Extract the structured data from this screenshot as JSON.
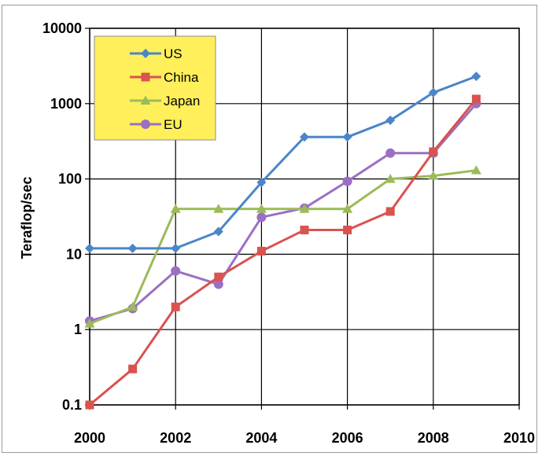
{
  "chart_data": {
    "type": "line",
    "title": "",
    "xlabel": "",
    "ylabel": "Teraflop/sec",
    "y_scale": "log",
    "xlim": [
      2000,
      2010
    ],
    "ylim": [
      0.1,
      10000
    ],
    "grid": true,
    "legend_position": "top-left",
    "legend_background": "#ffef5a",
    "x_ticks": [
      "2000",
      "2002",
      "2004",
      "2006",
      "2008",
      "2010"
    ],
    "y_ticks": [
      "0.1",
      "1",
      "10",
      "100",
      "1000",
      "10000"
    ],
    "x": [
      2000,
      2001,
      2002,
      2003,
      2004,
      2005,
      2006,
      2007,
      2008,
      2009
    ],
    "series": [
      {
        "name": "US",
        "color": "#4a86c8",
        "marker": "diamond",
        "values": [
          12,
          12,
          12,
          20,
          90,
          360,
          360,
          600,
          1400,
          2300
        ]
      },
      {
        "name": "China",
        "color": "#d9534f",
        "marker": "square",
        "values": [
          0.1,
          0.3,
          2,
          5,
          11,
          21,
          21,
          37,
          230,
          1150
        ]
      },
      {
        "name": "Japan",
        "color": "#9bbb59",
        "marker": "triangle",
        "values": [
          1.2,
          2,
          40,
          40,
          40,
          40,
          40,
          100,
          110,
          130
        ]
      },
      {
        "name": "EU",
        "color": "#9b6fc4",
        "marker": "circle",
        "values": [
          1.3,
          1.9,
          6,
          4,
          31,
          41,
          93,
          220,
          220,
          1000
        ]
      }
    ]
  }
}
